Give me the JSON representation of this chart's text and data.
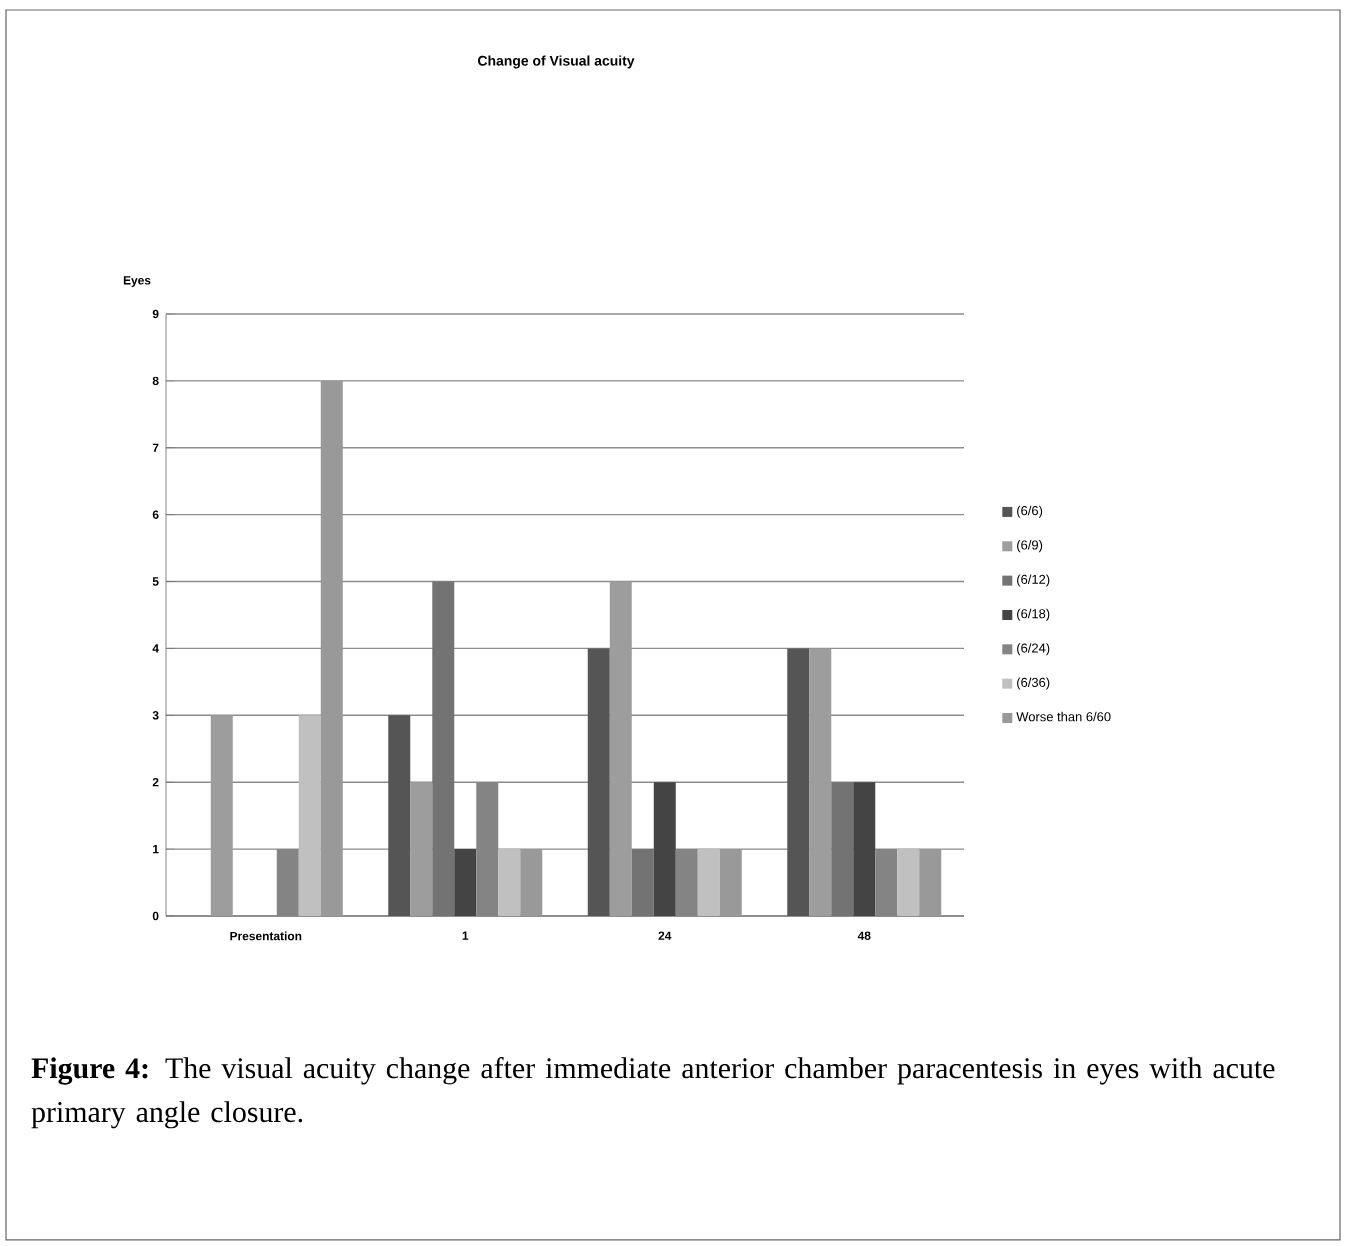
{
  "chart_data": {
    "type": "bar",
    "title": "Change of Visual acuity",
    "ylabel": "Eyes",
    "categories": [
      "Presentation",
      "1",
      "24",
      "48"
    ],
    "series": [
      {
        "name": "(6/6)",
        "color": "#555555",
        "values": [
          0,
          3,
          4,
          4
        ]
      },
      {
        "name": "(6/9)",
        "color": "#9d9d9d",
        "values": [
          3,
          2,
          5,
          4
        ]
      },
      {
        "name": "(6/12)",
        "color": "#737373",
        "values": [
          0,
          5,
          1,
          2
        ]
      },
      {
        "name": "(6/18)",
        "color": "#444444",
        "values": [
          0,
          1,
          2,
          2
        ]
      },
      {
        "name": "(6/24)",
        "color": "#848484",
        "values": [
          1,
          2,
          1,
          1
        ]
      },
      {
        "name": "(6/36)",
        "color": "#c0c0c0",
        "values": [
          3,
          1,
          1,
          1
        ]
      },
      {
        "name": "Worse than 6/60",
        "color": "#999999",
        "values": [
          8,
          1,
          1,
          1
        ]
      }
    ],
    "ylim": [
      0,
      9
    ],
    "yticks": [
      0,
      1,
      2,
      3,
      4,
      5,
      6,
      7,
      8,
      9
    ],
    "grid": "y",
    "legend": "right",
    "annotations": [
      "**Figure 4:** The visual acuity change after immediate anterior chamber paracentesis in eyes with acute primary angle closure."
    ]
  }
}
